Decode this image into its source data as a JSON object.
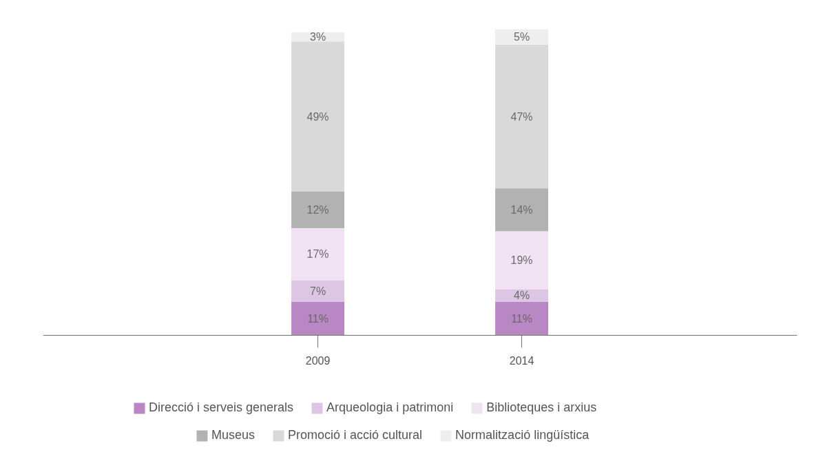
{
  "chart_data": {
    "type": "bar",
    "stacked": true,
    "categories": [
      "2009",
      "2014"
    ],
    "series": [
      {
        "name": "Direcció i serveis generals",
        "color": "#b987c4",
        "values": [
          11,
          11
        ],
        "value_labels": [
          "11%",
          "11%"
        ]
      },
      {
        "name": "Arqueologia i patrimoni",
        "color": "#dcc6e4",
        "values": [
          7,
          4
        ],
        "value_labels": [
          "7%",
          "4%"
        ]
      },
      {
        "name": "Biblioteques i arxius",
        "color": "#f0e2f2",
        "values": [
          17,
          19
        ],
        "value_labels": [
          "17%",
          "19%"
        ]
      },
      {
        "name": "Museus",
        "color": "#b2b2b2",
        "values": [
          12,
          14
        ],
        "value_labels": [
          "12%",
          "14%"
        ]
      },
      {
        "name": "Promoció i acció cultural",
        "color": "#d9d9da",
        "values": [
          49,
          47
        ],
        "value_labels": [
          "49%",
          "47%"
        ]
      },
      {
        "name": "Normalització lingüística",
        "color": "#eeeeee",
        "values": [
          3,
          5
        ],
        "value_labels": [
          "3%",
          "5%"
        ]
      }
    ],
    "legend": "bottom"
  }
}
